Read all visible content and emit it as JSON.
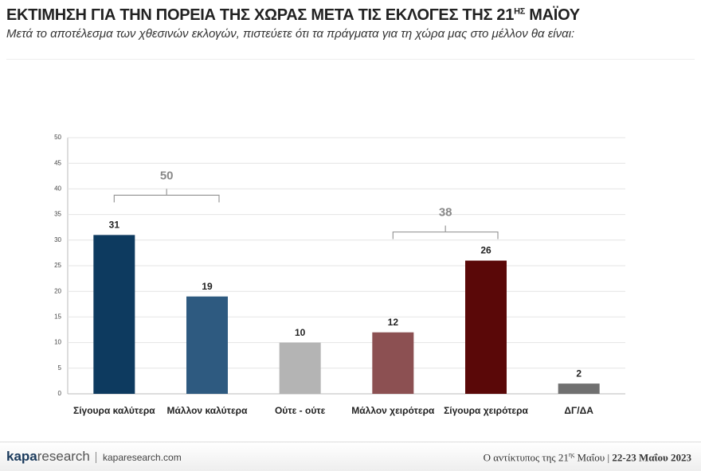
{
  "header": {
    "title": [
      "ΕΚΤΙΜΗΣΗ ΓΙΑ ΤΗΝ ΠΟΡΕΙΑ ΤΗΣ ΧΩΡΑΣ ΜΕΤΑ ΤΙΣ ΕΚΛΟΓΕΣ ΤΗΣ 21",
      "ΗΣ",
      " ΜΑΪΟΥ"
    ],
    "subtitle": "Μετά το αποτέλεσμα των χθεσινών εκλογών, πιστεύετε ότι τα πράγματα για τη χώρα μας στο μέλλον θα είναι:"
  },
  "chart_data": {
    "type": "bar",
    "categories": [
      "Σίγουρα καλύτερα",
      "Μάλλον καλύτερα",
      "Ούτε - ούτε",
      "Μάλλον χειρότερα",
      "Σίγουρα χειρότερα",
      "ΔΓ/ΔΑ"
    ],
    "values": [
      31,
      19,
      10,
      12,
      26,
      2
    ],
    "colors": [
      "#0d3a5f",
      "#2e5a80",
      "#b4b4b4",
      "#8c5052",
      "#5a0808",
      "#707070"
    ],
    "ylim": [
      0,
      50
    ],
    "yticks": [
      0,
      5,
      10,
      15,
      20,
      25,
      30,
      35,
      40,
      45,
      50
    ],
    "grid": true,
    "brackets": [
      {
        "value": 50,
        "bars": [
          0,
          1
        ]
      },
      {
        "value": 38,
        "bars": [
          3,
          4
        ]
      }
    ]
  },
  "footer": {
    "logo": [
      "kapa",
      "research"
    ],
    "site": "kaparesearch.com",
    "note": [
      "Ο αντίκτυπος της 21",
      "ης",
      " Μαΐου",
      "|",
      "22-23 Μαΐου 2023"
    ]
  }
}
